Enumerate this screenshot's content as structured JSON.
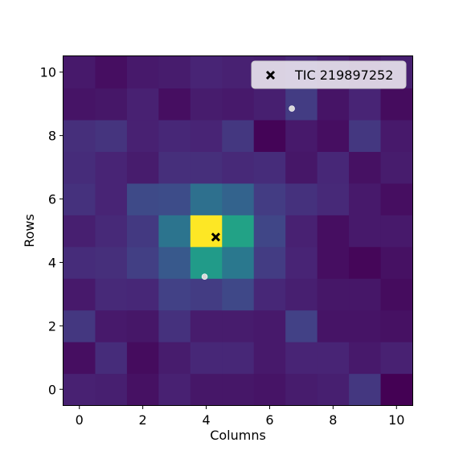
{
  "chart_data": {
    "type": "heatmap",
    "title": "",
    "xlabel": "Columns",
    "ylabel": "Rows",
    "xlim": [
      -0.5,
      10.5
    ],
    "ylim": [
      -0.5,
      10.5
    ],
    "x_ticks": [
      0,
      2,
      4,
      6,
      8,
      10
    ],
    "y_ticks": [
      0,
      2,
      4,
      6,
      8,
      10
    ],
    "colormap": "viridis",
    "row_order": "bottom-to-top (row 0 first)",
    "values": [
      [
        0.12,
        0.11,
        0.06,
        0.12,
        0.08,
        0.08,
        0.07,
        0.1,
        0.11,
        0.2,
        0.0
      ],
      [
        0.05,
        0.16,
        0.04,
        0.1,
        0.14,
        0.14,
        0.09,
        0.13,
        0.13,
        0.09,
        0.12
      ],
      [
        0.2,
        0.09,
        0.08,
        0.18,
        0.1,
        0.1,
        0.09,
        0.24,
        0.07,
        0.07,
        0.06
      ],
      [
        0.09,
        0.15,
        0.14,
        0.24,
        0.22,
        0.27,
        0.14,
        0.11,
        0.08,
        0.08,
        0.04
      ],
      [
        0.16,
        0.17,
        0.23,
        0.35,
        0.68,
        0.5,
        0.22,
        0.13,
        0.05,
        0.02,
        0.06
      ],
      [
        0.11,
        0.15,
        0.21,
        0.48,
        1.0,
        0.72,
        0.26,
        0.12,
        0.05,
        0.09,
        0.09
      ],
      [
        0.18,
        0.13,
        0.28,
        0.29,
        0.46,
        0.4,
        0.22,
        0.18,
        0.15,
        0.09,
        0.05
      ],
      [
        0.16,
        0.13,
        0.1,
        0.17,
        0.17,
        0.15,
        0.16,
        0.08,
        0.14,
        0.06,
        0.1
      ],
      [
        0.17,
        0.19,
        0.12,
        0.14,
        0.13,
        0.2,
        0.01,
        0.09,
        0.05,
        0.2,
        0.09
      ],
      [
        0.07,
        0.08,
        0.12,
        0.05,
        0.1,
        0.09,
        0.11,
        0.22,
        0.07,
        0.13,
        0.04
      ],
      [
        0.09,
        0.05,
        0.09,
        0.1,
        0.13,
        0.12,
        0.11,
        0.14,
        0.11,
        0.08,
        0.11
      ]
    ],
    "target": {
      "label": "TIC 219897252",
      "x": 4.3,
      "y": 4.8,
      "marker": "x"
    },
    "neighbors": [
      {
        "x": 6.7,
        "y": 8.85
      },
      {
        "x": 3.95,
        "y": 3.55
      }
    ],
    "legend": {
      "location": "top-right",
      "entries": [
        "TIC 219897252"
      ]
    }
  }
}
